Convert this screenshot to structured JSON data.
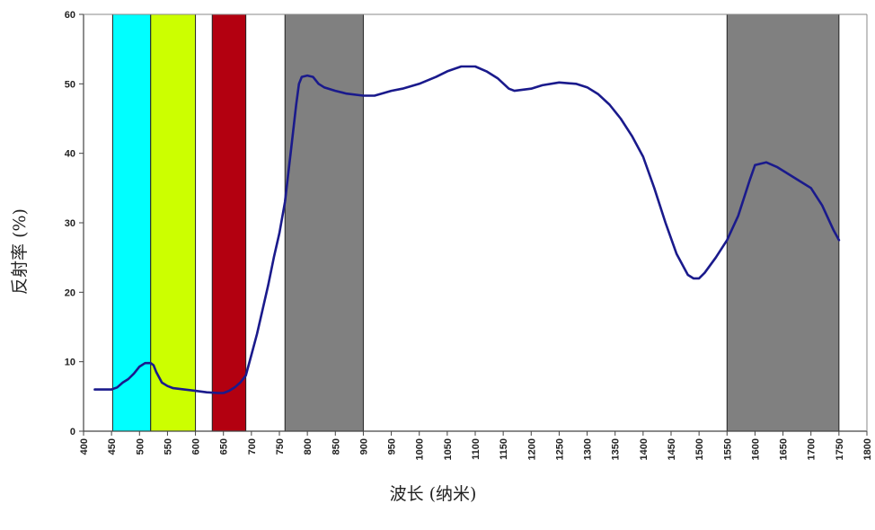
{
  "chart_data": {
    "type": "line",
    "xlabel": "波长 (纳米)",
    "ylabel": "反射率 (%)",
    "xlim": [
      400,
      1800
    ],
    "ylim": [
      0,
      60
    ],
    "grid": false,
    "x_ticks": [
      400,
      450,
      500,
      550,
      600,
      650,
      700,
      750,
      800,
      850,
      900,
      950,
      1000,
      1050,
      1100,
      1150,
      1200,
      1250,
      1300,
      1350,
      1400,
      1450,
      1500,
      1550,
      1600,
      1650,
      1700,
      1750,
      1800
    ],
    "x_tick_labels": [
      "400",
      "450",
      "500",
      "550",
      "600",
      "650",
      "700",
      "750",
      "800",
      "850",
      "900",
      "950",
      "1000",
      "1050",
      "1100",
      "1150",
      "1200",
      "1250",
      "1300",
      "1350",
      "1400",
      "1450",
      "1500",
      "1550",
      "1600",
      "1650",
      "1700",
      "1750",
      "1800"
    ],
    "y_ticks": [
      0,
      10,
      20,
      30,
      40,
      50,
      60
    ],
    "y_tick_labels": [
      "0",
      "10",
      "20",
      "30",
      "40",
      "50",
      "60"
    ],
    "bands": [
      {
        "start": 452,
        "end": 520,
        "color": "#00ffff"
      },
      {
        "start": 520,
        "end": 600,
        "color": "#ccff00"
      },
      {
        "start": 630,
        "end": 690,
        "color": "#b30010"
      },
      {
        "start": 760,
        "end": 900,
        "color": "#808080"
      },
      {
        "start": 1550,
        "end": 1750,
        "color": "#808080"
      }
    ],
    "series": [
      {
        "color": "#1a1a8c",
        "points": [
          [
            420,
            6
          ],
          [
            450,
            6
          ],
          [
            460,
            6.3
          ],
          [
            470,
            7
          ],
          [
            480,
            7.5
          ],
          [
            490,
            8.3
          ],
          [
            500,
            9.3
          ],
          [
            510,
            9.8
          ],
          [
            520,
            9.8
          ],
          [
            525,
            9.5
          ],
          [
            530,
            8.5
          ],
          [
            540,
            7
          ],
          [
            550,
            6.5
          ],
          [
            560,
            6.2
          ],
          [
            580,
            6
          ],
          [
            600,
            5.8
          ],
          [
            620,
            5.6
          ],
          [
            640,
            5.5
          ],
          [
            650,
            5.5
          ],
          [
            660,
            5.8
          ],
          [
            670,
            6.3
          ],
          [
            680,
            7
          ],
          [
            690,
            8
          ],
          [
            700,
            11
          ],
          [
            710,
            14
          ],
          [
            720,
            17.5
          ],
          [
            730,
            21
          ],
          [
            740,
            25
          ],
          [
            750,
            28.5
          ],
          [
            760,
            33
          ],
          [
            770,
            40
          ],
          [
            780,
            47
          ],
          [
            785,
            50
          ],
          [
            790,
            51
          ],
          [
            800,
            51.2
          ],
          [
            810,
            51
          ],
          [
            820,
            50
          ],
          [
            830,
            49.5
          ],
          [
            850,
            49
          ],
          [
            870,
            48.6
          ],
          [
            900,
            48.3
          ],
          [
            920,
            48.3
          ],
          [
            950,
            49
          ],
          [
            970,
            49.3
          ],
          [
            1000,
            50
          ],
          [
            1030,
            51
          ],
          [
            1050,
            51.8
          ],
          [
            1075,
            52.5
          ],
          [
            1100,
            52.5
          ],
          [
            1120,
            51.8
          ],
          [
            1140,
            50.8
          ],
          [
            1160,
            49.3
          ],
          [
            1170,
            49
          ],
          [
            1200,
            49.3
          ],
          [
            1220,
            49.8
          ],
          [
            1250,
            50.2
          ],
          [
            1280,
            50
          ],
          [
            1300,
            49.5
          ],
          [
            1320,
            48.5
          ],
          [
            1340,
            47
          ],
          [
            1360,
            45
          ],
          [
            1380,
            42.5
          ],
          [
            1400,
            39.5
          ],
          [
            1420,
            35
          ],
          [
            1440,
            30
          ],
          [
            1460,
            25.5
          ],
          [
            1480,
            22.5
          ],
          [
            1490,
            22
          ],
          [
            1500,
            22
          ],
          [
            1510,
            22.8
          ],
          [
            1530,
            25
          ],
          [
            1550,
            27.5
          ],
          [
            1570,
            31
          ],
          [
            1590,
            36
          ],
          [
            1600,
            38.3
          ],
          [
            1620,
            38.7
          ],
          [
            1640,
            38
          ],
          [
            1660,
            37
          ],
          [
            1680,
            36
          ],
          [
            1700,
            35
          ],
          [
            1720,
            32.5
          ],
          [
            1740,
            29
          ],
          [
            1750,
            27.5
          ]
        ]
      }
    ]
  }
}
